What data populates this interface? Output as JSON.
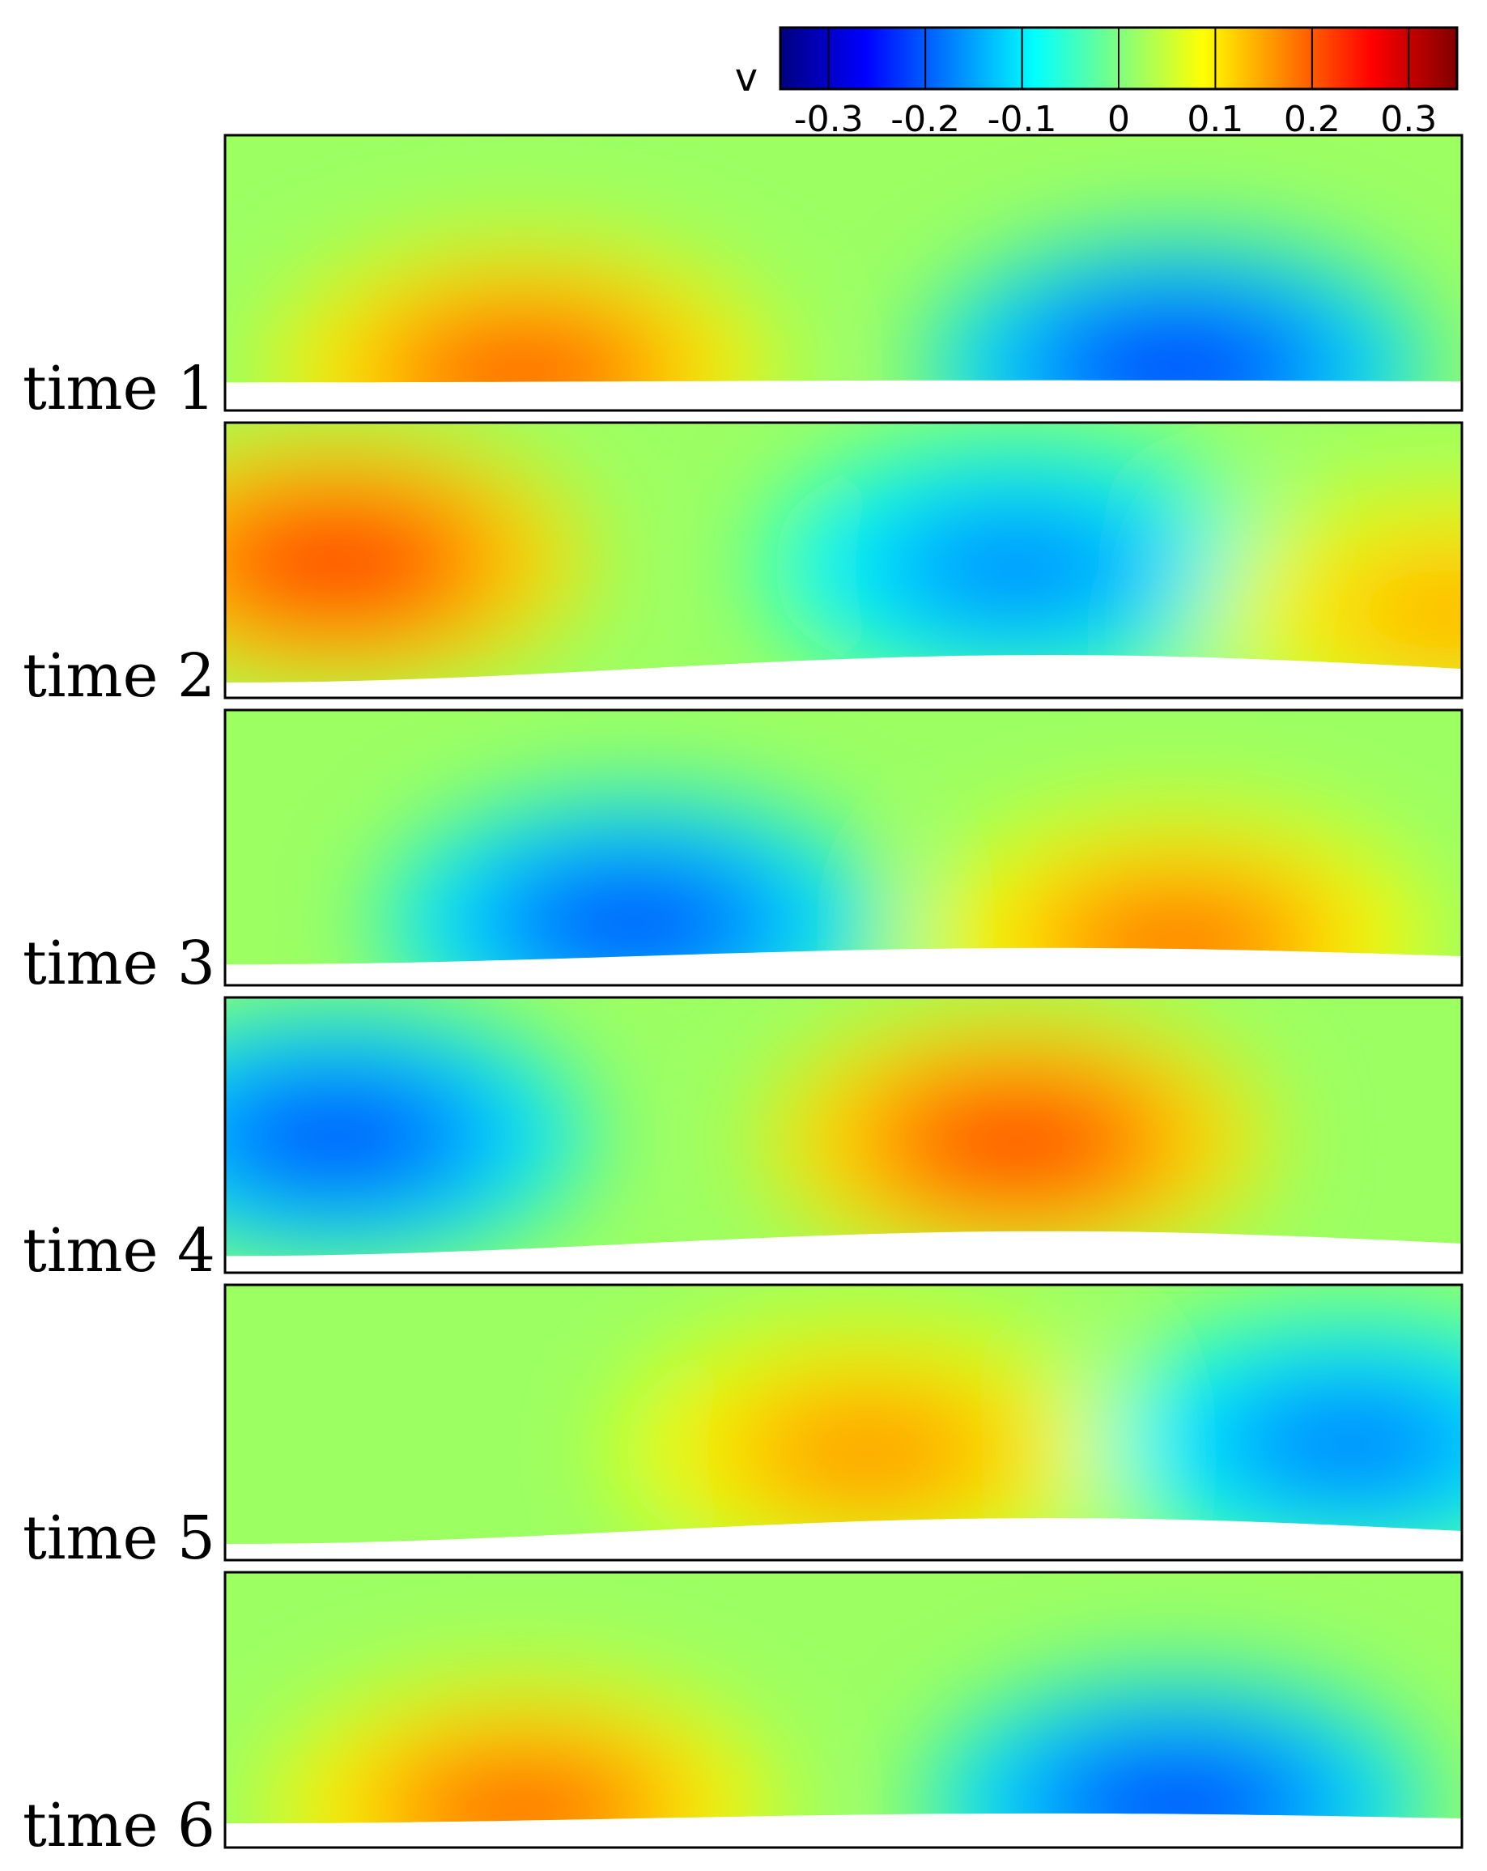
{
  "chart_data": {
    "type": "heatmap",
    "title": "",
    "colorbar": {
      "label": "v",
      "range": [
        -0.35,
        0.35
      ],
      "ticks": [
        -0.3,
        -0.2,
        -0.1,
        0,
        0.1,
        0.2,
        0.3
      ],
      "tick_labels": [
        "-0.3",
        "-0.2",
        "-0.1",
        "0",
        "0.1",
        "0.2",
        "0.3"
      ],
      "colormap": [
        "#00007f",
        "#0000ff",
        "#007fff",
        "#00ffff",
        "#7fff7f",
        "#ffff00",
        "#ff7f00",
        "#ff0000",
        "#7f0000"
      ],
      "placement": "top-right"
    },
    "panels": [
      {
        "label": "time 1",
        "min_v": -0.25,
        "max_v": 0.22,
        "features": [
          {
            "sign": "positive",
            "location": "lower-left",
            "peak_v": 0.22
          },
          {
            "sign": "negative",
            "location": "lower-right",
            "peak_v": -0.25
          }
        ]
      },
      {
        "label": "time 2",
        "min_v": -0.18,
        "max_v": 0.25,
        "features": [
          {
            "sign": "positive",
            "location": "left",
            "peak_v": 0.25
          },
          {
            "sign": "negative",
            "location": "center-right",
            "peak_v": -0.18
          },
          {
            "sign": "positive",
            "location": "right-edge",
            "peak_v": 0.15
          }
        ]
      },
      {
        "label": "time 3",
        "min_v": -0.23,
        "max_v": 0.2,
        "features": [
          {
            "sign": "negative",
            "location": "lower-center-left",
            "peak_v": -0.23
          },
          {
            "sign": "positive",
            "location": "lower-right",
            "peak_v": 0.2
          }
        ]
      },
      {
        "label": "time 4",
        "min_v": -0.23,
        "max_v": 0.24,
        "features": [
          {
            "sign": "negative",
            "location": "left",
            "peak_v": -0.23
          },
          {
            "sign": "positive",
            "location": "center-right",
            "peak_v": 0.24
          }
        ]
      },
      {
        "label": "time 5",
        "min_v": -0.19,
        "max_v": 0.17,
        "features": [
          {
            "sign": "positive",
            "location": "center",
            "peak_v": 0.17
          },
          {
            "sign": "negative",
            "location": "right",
            "peak_v": -0.19
          }
        ]
      },
      {
        "label": "time 6",
        "min_v": -0.24,
        "max_v": 0.21,
        "features": [
          {
            "sign": "positive",
            "location": "lower-left",
            "peak_v": 0.21
          },
          {
            "sign": "negative",
            "location": "lower-right",
            "peak_v": -0.24
          }
        ]
      }
    ]
  }
}
